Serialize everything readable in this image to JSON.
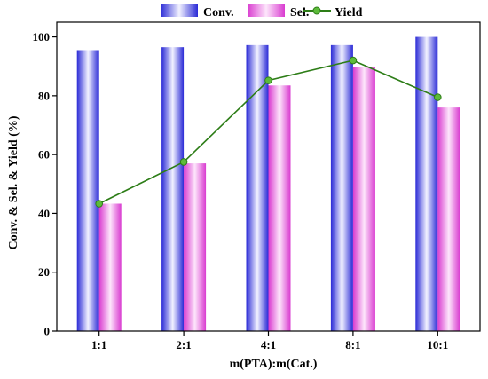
{
  "chart_data": {
    "type": "bar",
    "categories": [
      "1:1",
      "2:1",
      "4:1",
      "8:1",
      "10:1"
    ],
    "series": [
      {
        "name": "Conv.",
        "kind": "bar",
        "values": [
          95.5,
          96.5,
          97.2,
          97.2,
          100
        ]
      },
      {
        "name": "Sel.",
        "kind": "bar",
        "values": [
          43.3,
          57,
          83.5,
          89.8,
          76
        ]
      },
      {
        "name": "Yield",
        "kind": "line",
        "values": [
          43.3,
          57.5,
          85.2,
          92,
          79.5
        ]
      }
    ],
    "xlabel": "m(PTA):m(Cat.)",
    "ylabel": "Conv. & Sel. & Yield (%)",
    "ylim": [
      0,
      105
    ],
    "yticks": [
      0,
      20,
      40,
      60,
      80,
      100
    ],
    "grid": false,
    "legend_position": "top-center",
    "colors": {
      "conv_light": "#f2f2ff",
      "conv_dark": "#2a2ad6",
      "sel_light": "#fde6fb",
      "sel_dark": "#d93bd0",
      "yield_line": "#2d7d17",
      "yield_marker": "#5dbb3a"
    }
  }
}
